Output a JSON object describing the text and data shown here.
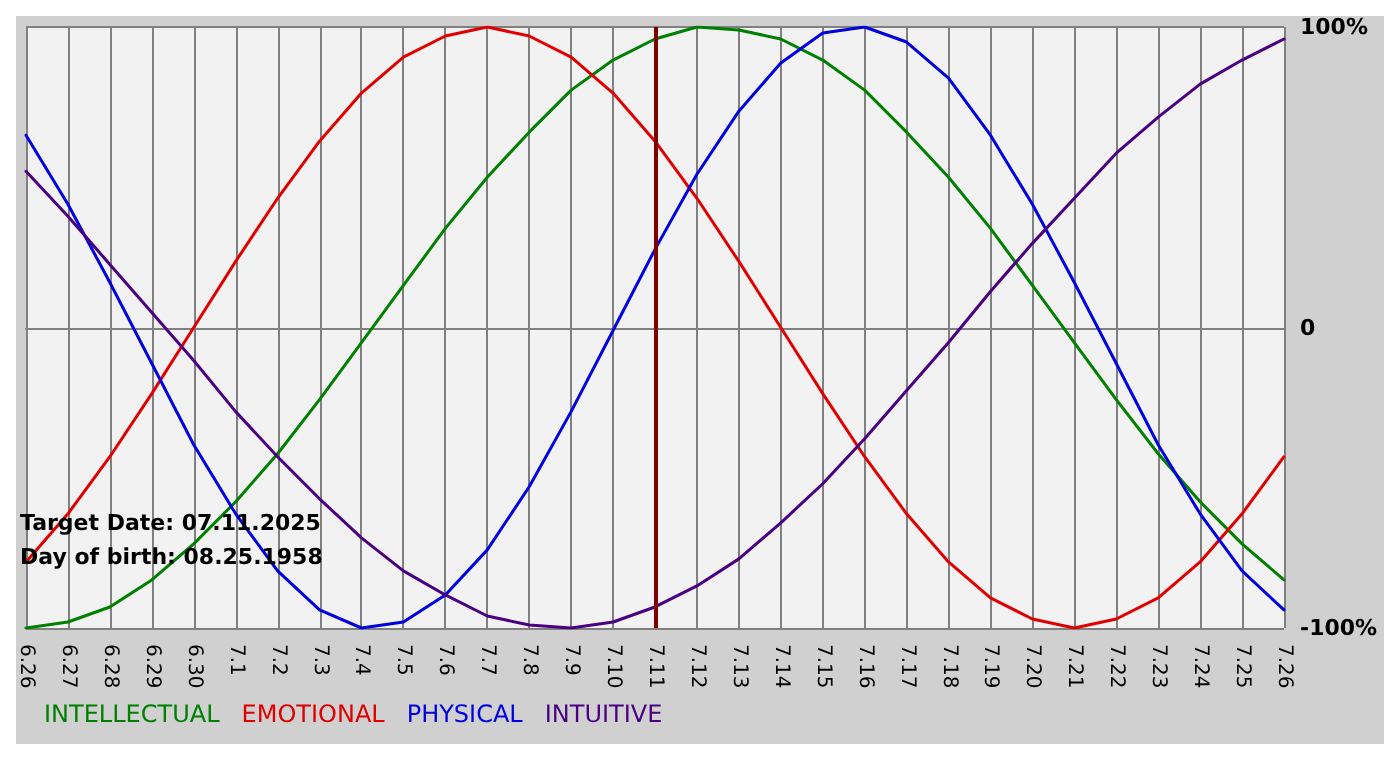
{
  "chart_data": {
    "type": "line",
    "categories": [
      "6.26",
      "6.27",
      "6.28",
      "6.29",
      "6.30",
      "7.1",
      "7.2",
      "7.3",
      "7.4",
      "7.5",
      "7.6",
      "7.7",
      "7.8",
      "7.9",
      "7.10",
      "7.11",
      "7.12",
      "7.13",
      "7.14",
      "7.15",
      "7.16",
      "7.17",
      "7.18",
      "7.19",
      "7.20",
      "7.21",
      "7.22",
      "7.23",
      "7.24",
      "7.25",
      "7.26"
    ],
    "series": [
      {
        "name": "INTELLECTUAL",
        "color": "#008000",
        "values": [
          -100,
          -98,
          -93,
          -84,
          -72,
          -58,
          -42,
          -24,
          -5,
          14,
          33,
          50,
          65,
          79,
          89,
          96,
          100,
          99,
          96,
          89,
          79,
          65,
          50,
          33,
          14,
          -5,
          -24,
          -42,
          -58,
          -72,
          -84
        ]
      },
      {
        "name": "EMOTIONAL",
        "color": "#e00000",
        "values": [
          -78,
          -62,
          -43,
          -22,
          0,
          22,
          43,
          62,
          78,
          90,
          97,
          100,
          97,
          90,
          78,
          62,
          43,
          22,
          0,
          -22,
          -43,
          -62,
          -78,
          -90,
          -97,
          -100,
          -97,
          -90,
          -78,
          -62,
          -43
        ]
      },
      {
        "name": "PHYSICAL",
        "color": "#0000e0",
        "values": [
          64,
          41,
          15,
          -12,
          -39,
          -62,
          -81,
          -94,
          -100,
          -98,
          -89,
          -74,
          -53,
          -28,
          -1,
          26,
          51,
          72,
          88,
          98,
          100,
          95,
          83,
          64,
          41,
          15,
          -12,
          -39,
          -62,
          -81,
          -94
        ]
      },
      {
        "name": "INTUITIVE",
        "color": "#4b0082",
        "values": [
          52,
          37,
          21,
          5,
          -11,
          -28,
          -43,
          -57,
          -70,
          -81,
          -89,
          -96,
          -99,
          -100,
          -98,
          -93,
          -86,
          -77,
          -65,
          -52,
          -37,
          -21,
          -5,
          12,
          28,
          43,
          58,
          70,
          81,
          89,
          96
        ]
      }
    ],
    "ylim": [
      -100,
      100
    ],
    "yticks": [
      {
        "value": -100,
        "label": "-100%"
      },
      0,
      {
        "value": 100,
        "label": "100%"
      }
    ],
    "grid": true,
    "legend": "bottom left",
    "marker": "none",
    "line_style": "solid",
    "ref_lines": [
      {
        "axis": "x",
        "value": "7.11",
        "label": null,
        "color": "#800000"
      }
    ],
    "annotations": [
      "Target Date: 07.11.2025",
      "Day of birth: 08.25.1958"
    ]
  }
}
